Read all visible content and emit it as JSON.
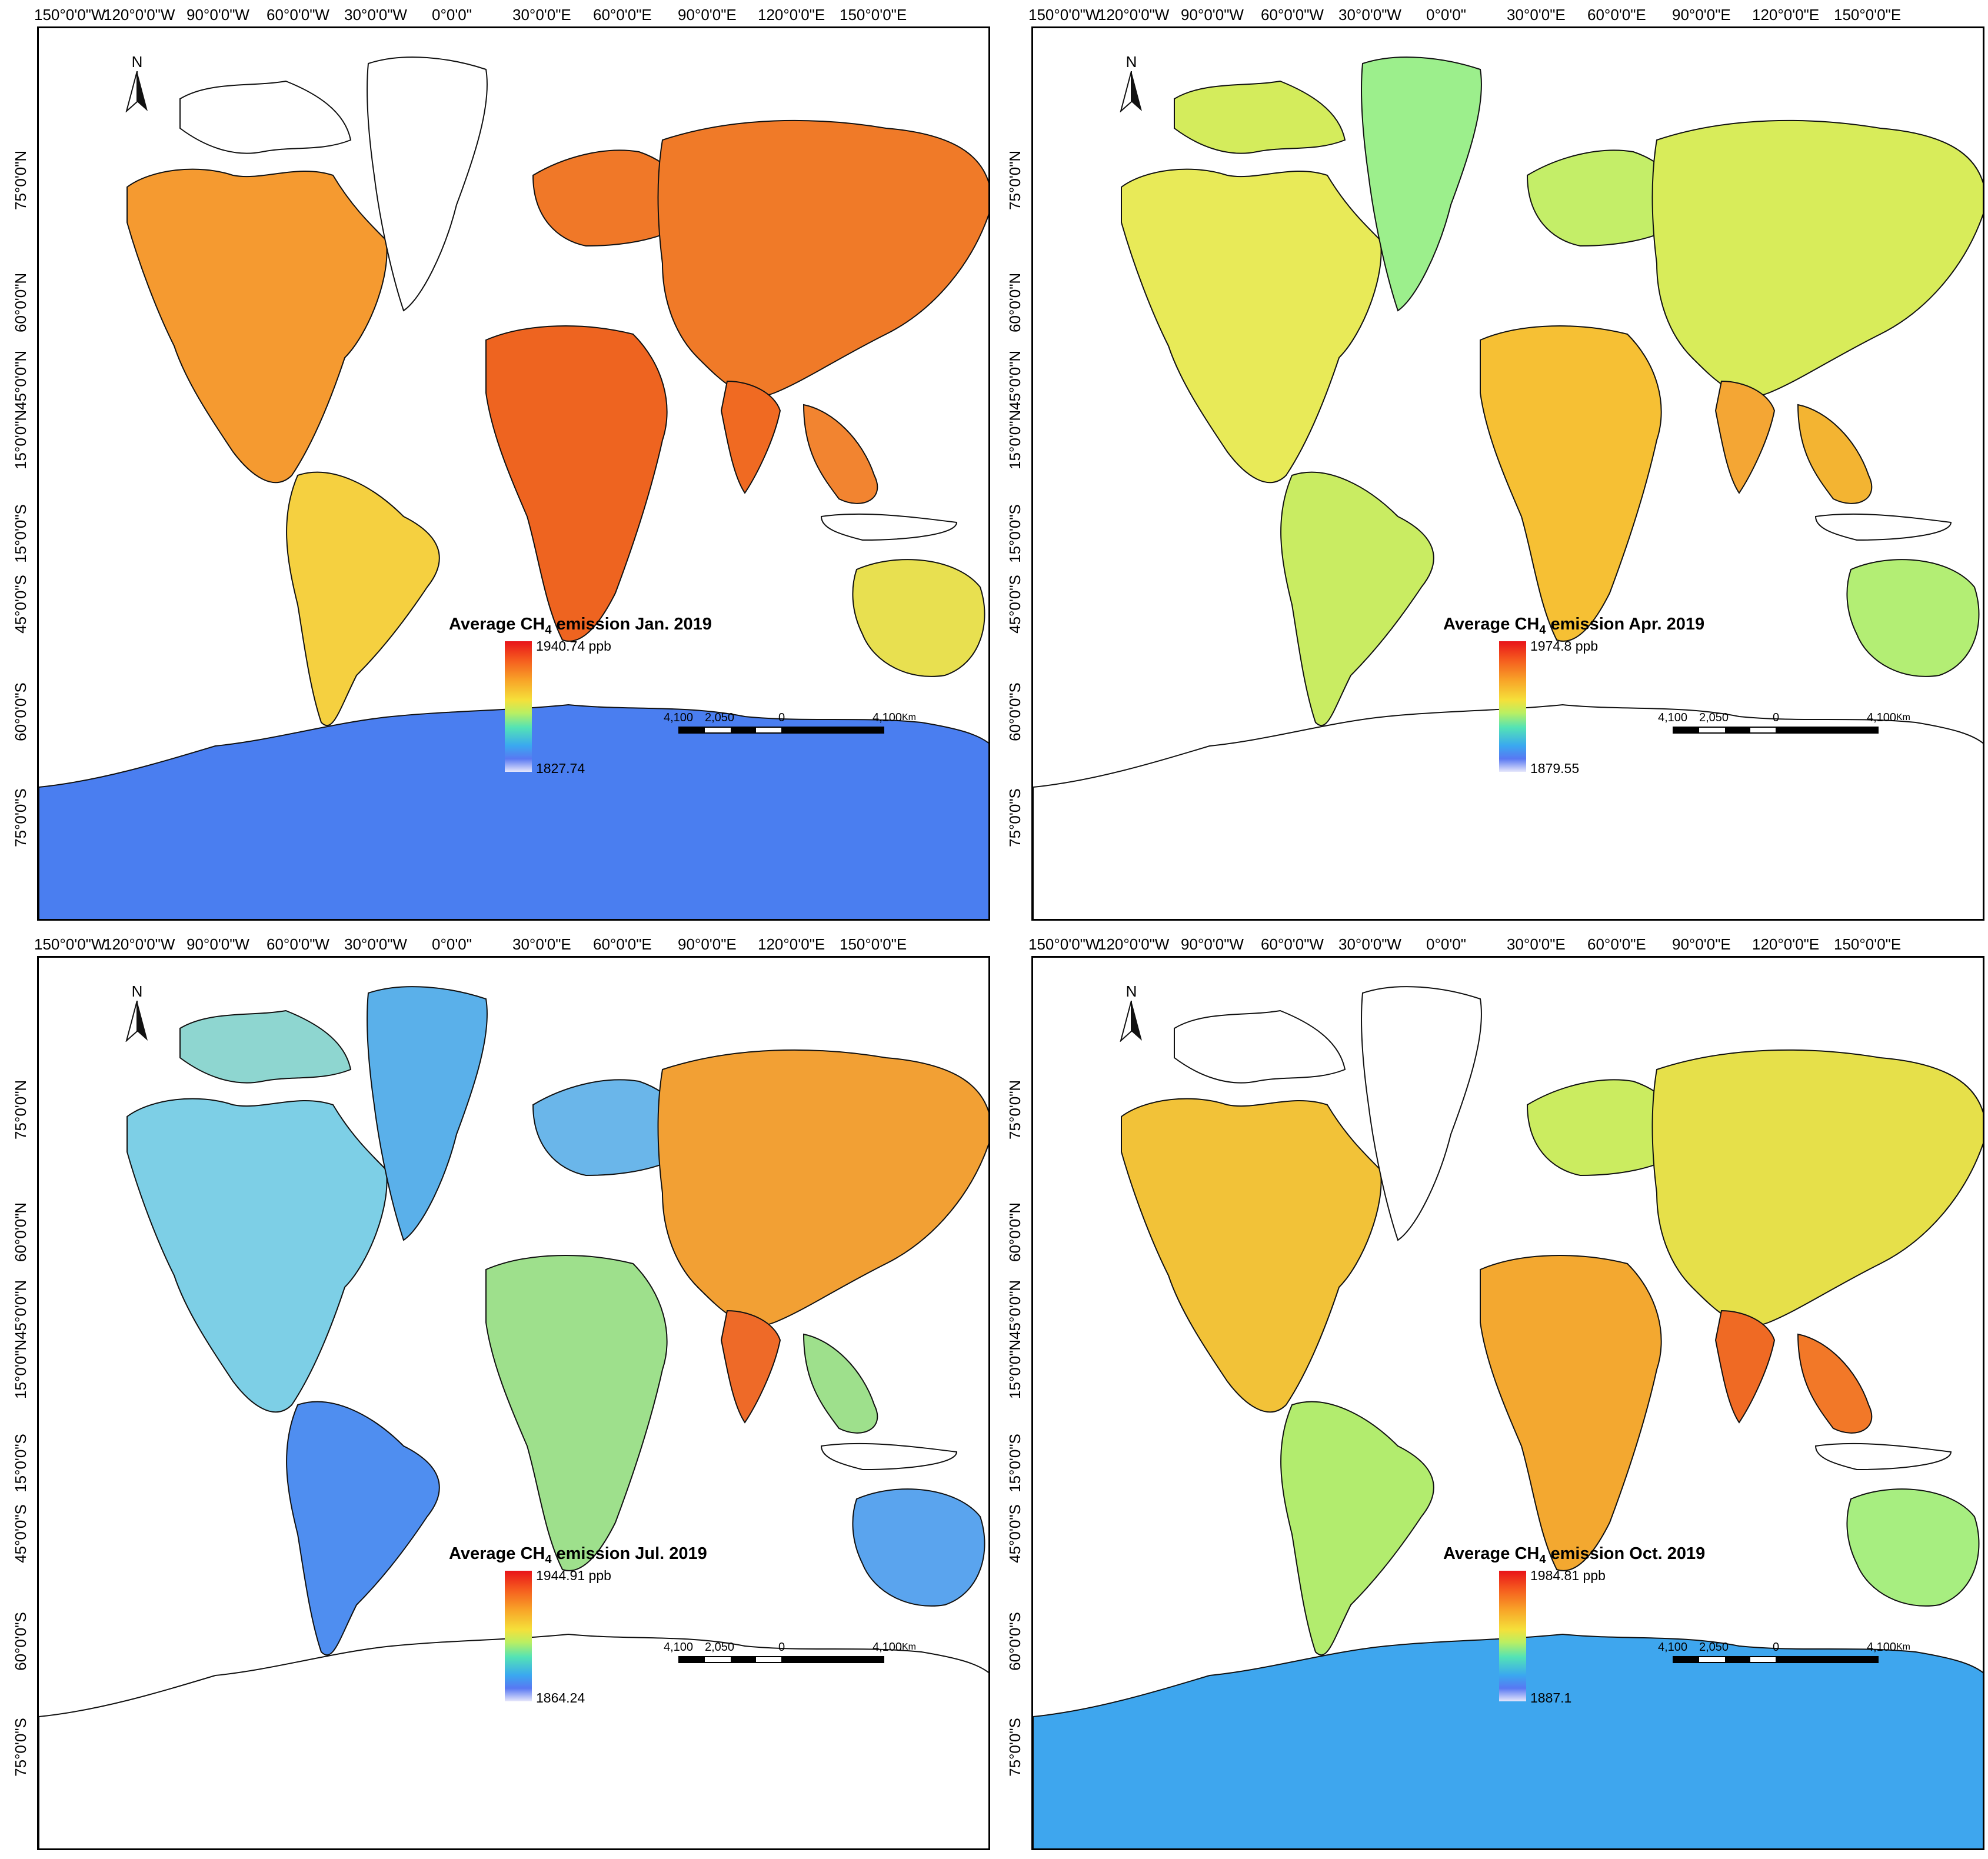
{
  "x_ticks": [
    "150°0'0\"W",
    "120°0'0\"W",
    "90°0'0\"W",
    "60°0'0\"W",
    "30°0'0\"W",
    "0°0'0\"",
    "30°0'0\"E",
    "60°0'0\"E",
    "90°0'0\"E",
    "120°0'0\"E",
    "150°0'0\"E"
  ],
  "y_ticks": [
    "75°0'0\"N",
    "60°0'0\"N",
    "45°0'0\"N",
    "15°0'0\"N",
    "15°0'0\"S",
    "45°0'0\"S",
    "60°0'0\"S",
    "75°0'0\"S"
  ],
  "north_label": "N",
  "scale": {
    "labels": [
      "4,100",
      "2,050",
      "0",
      "4,100"
    ],
    "unit": "Km"
  },
  "legend_prefix": "Average CH",
  "legend_sub": "4",
  "panels": [
    {
      "id": "jan",
      "title_suffix": " emission Jan. 2019",
      "max_label": "1940.74 ppb",
      "min_label": "1827.74"
    },
    {
      "id": "apr",
      "title_suffix": " emission Apr. 2019",
      "max_label": "1974.8 ppb",
      "min_label": "1879.55"
    },
    {
      "id": "jul",
      "title_suffix": " emission Jul. 2019",
      "max_label": "1944.91 ppb",
      "min_label": "1864.24"
    },
    {
      "id": "oct",
      "title_suffix": " emission Oct. 2019",
      "max_label": "1984.81 ppb",
      "min_label": "1887.1"
    }
  ],
  "colors": {
    "high": "#e8141a",
    "mid_high": "#f8a428",
    "mid": "#f5e03a",
    "mid_low": "#54e3b5",
    "low": "#3c78f0",
    "lowest": "#e6e6fb"
  }
}
